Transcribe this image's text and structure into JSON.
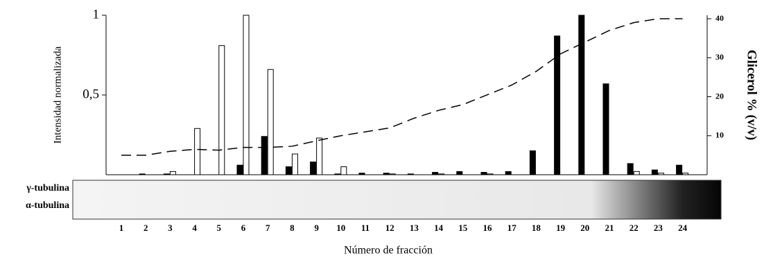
{
  "chart_data": {
    "type": "bar",
    "y_label": "Intensidad normalizada",
    "y2_label": "Glicerol % (v/v)",
    "x_label": "Número de fracción",
    "blot_labels": [
      "γ-tubulina",
      "α-tubulina"
    ],
    "categories": [
      "1",
      "2",
      "3",
      "4",
      "5",
      "6",
      "7",
      "8",
      "9",
      "10",
      "11",
      "12",
      "13",
      "14",
      "15",
      "16",
      "17",
      "18",
      "19",
      "20",
      "21",
      "22",
      "23",
      "24"
    ],
    "series": [
      {
        "color": "#000000",
        "values": [
          0,
          0.005,
          0.005,
          0,
          0,
          0.06,
          0.24,
          0.05,
          0.08,
          0.005,
          0.01,
          0.01,
          0.005,
          0.015,
          0.02,
          0.015,
          0.02,
          0.15,
          0.87,
          1.0,
          0.57,
          0.07,
          0.03,
          0.06
        ]
      },
      {
        "color": "#ffffff",
        "values": [
          0,
          0,
          0.02,
          0.29,
          0.81,
          1.0,
          0.66,
          0.13,
          0.23,
          0.05,
          0,
          0.005,
          0,
          0.005,
          0,
          0.005,
          0,
          0,
          0,
          0,
          0,
          0.02,
          0.01,
          0.01
        ]
      },
      {
        "type": "line",
        "axis": "y2",
        "color": "#000000",
        "values": [
          5,
          5,
          6,
          6.5,
          6.3,
          7,
          7,
          7.3,
          8.7,
          10,
          11,
          12,
          14.5,
          16.5,
          18,
          20.5,
          23,
          26.5,
          31,
          34,
          37,
          39,
          40,
          40
        ]
      }
    ],
    "ylim": [
      0,
      1
    ],
    "yticks": [
      {
        "value": 0.5,
        "label": "0,5"
      },
      1
    ],
    "y2lim": [
      0,
      40
    ],
    "y2ticks": [
      10,
      20,
      30,
      40
    ]
  }
}
